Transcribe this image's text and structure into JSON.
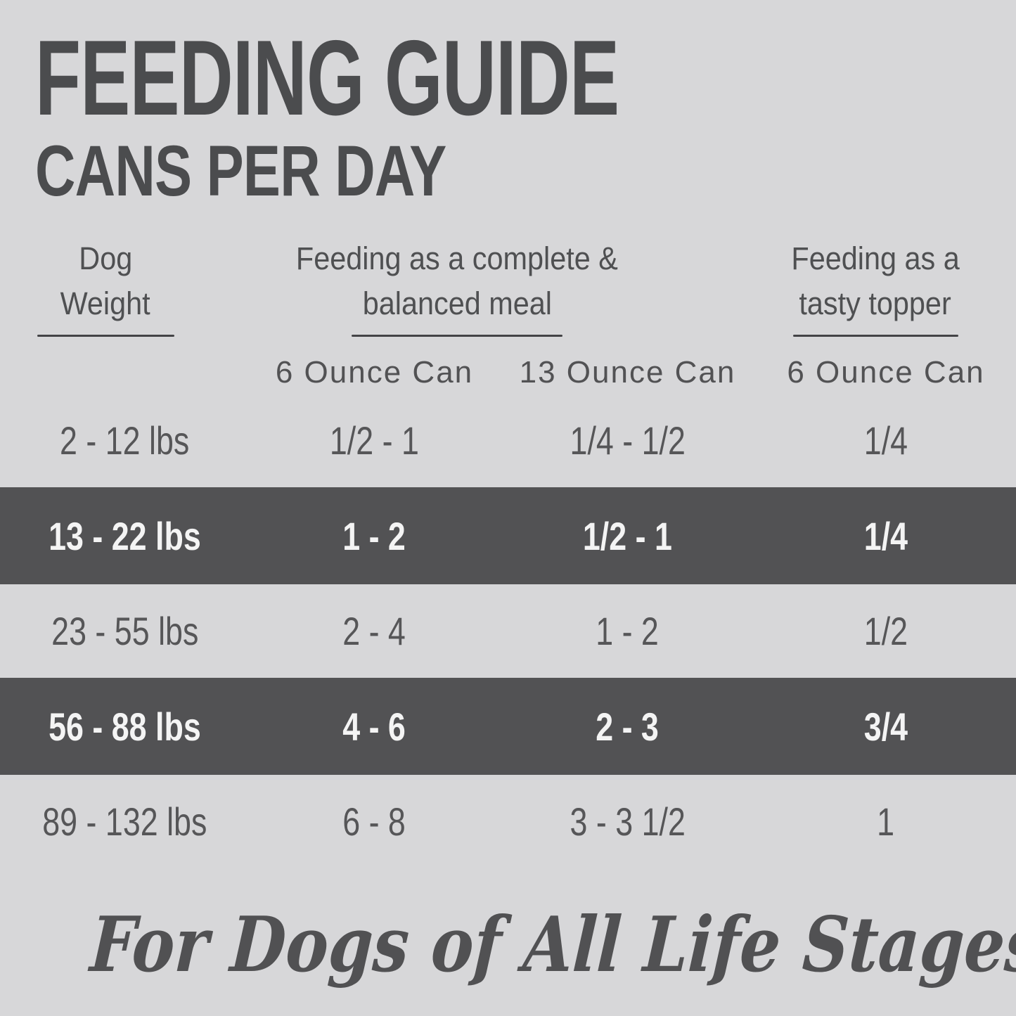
{
  "colors": {
    "background": "#d7d7d9",
    "highlight_band": "#525254",
    "title_text": "#4b4c4e",
    "body_text": "#565658",
    "band_text": "#f4f4f4"
  },
  "header": {
    "title": "FEEDING GUIDE",
    "subtitle": "CANS PER DAY"
  },
  "table": {
    "column_groups": [
      {
        "line1": "Dog",
        "line2": "Weight"
      },
      {
        "line1": "Feeding as a complete &",
        "line2": "balanced meal"
      },
      {
        "line1": "Feeding as a",
        "line2": "tasty topper"
      }
    ],
    "subheaders": [
      "6 Ounce Can",
      "13 Ounce Can",
      "6 Ounce Can"
    ],
    "rows": [
      {
        "weight": "2 - 12 lbs",
        "meal_6oz": "1/2 - 1",
        "meal_13oz": "1/4 - 1/2",
        "topper_6oz": "1/4",
        "highlighted": false
      },
      {
        "weight": "13 - 22 lbs",
        "meal_6oz": "1 - 2",
        "meal_13oz": "1/2 - 1",
        "topper_6oz": "1/4",
        "highlighted": true
      },
      {
        "weight": "23 - 55 lbs",
        "meal_6oz": "2 - 4",
        "meal_13oz": "1 - 2",
        "topper_6oz": "1/2",
        "highlighted": false
      },
      {
        "weight": "56 - 88 lbs",
        "meal_6oz": "4 - 6",
        "meal_13oz": "2 - 3",
        "topper_6oz": "3/4",
        "highlighted": true
      },
      {
        "weight": "89 - 132 lbs",
        "meal_6oz": "6 - 8",
        "meal_13oz": "3 - 3 1/2",
        "topper_6oz": "1",
        "highlighted": false
      }
    ]
  },
  "footer": {
    "tagline": "For Dogs of All Life Stages"
  },
  "chart_data": {
    "type": "table",
    "title": "FEEDING GUIDE",
    "subtitle": "CANS PER DAY",
    "columns": [
      "Dog Weight",
      "Feeding as a complete & balanced meal - 6 Ounce Can",
      "Feeding as a complete & balanced meal - 13 Ounce Can",
      "Feeding as a tasty topper - 6 Ounce Can"
    ],
    "rows": [
      [
        "2 - 12 lbs",
        "1/2 - 1",
        "1/4 - 1/2",
        "1/4"
      ],
      [
        "13 - 22 lbs",
        "1 - 2",
        "1/2 - 1",
        "1/4"
      ],
      [
        "23 - 55 lbs",
        "2 - 4",
        "1 - 2",
        "1/2"
      ],
      [
        "56 - 88 lbs",
        "4 - 6",
        "2 - 3",
        "3/4"
      ],
      [
        "89 - 132 lbs",
        "6 - 8",
        "3 - 3 1/2",
        "1"
      ]
    ],
    "highlighted_rows": [
      "13 - 22 lbs",
      "56 - 88 lbs"
    ],
    "footnote": "For Dogs of All Life Stages"
  }
}
